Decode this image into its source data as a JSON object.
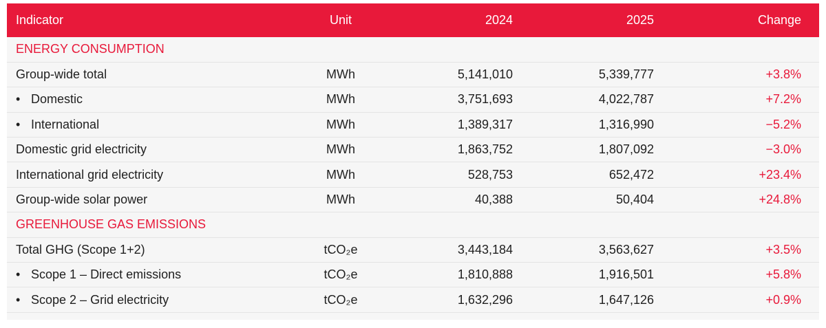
{
  "header": {
    "indicator": "Indicator",
    "unit": "Unit",
    "y2024": "2024",
    "y2025": "2025",
    "change": "Change"
  },
  "sections": [
    {
      "title": "ENERGY CONSUMPTION",
      "rows": [
        {
          "indicator": "Group-wide total",
          "sub": false,
          "unit": "MWh",
          "y2024": "5,141,010",
          "y2025": "5,339,777",
          "change": "+3.8%"
        },
        {
          "indicator": "Domestic",
          "sub": true,
          "unit": "MWh",
          "y2024": "3,751,693",
          "y2025": "4,022,787",
          "change": "+7.2%"
        },
        {
          "indicator": "International",
          "sub": true,
          "unit": "MWh",
          "y2024": "1,389,317",
          "y2025": "1,316,990",
          "change": "−5.2%"
        },
        {
          "indicator": "Domestic grid electricity",
          "sub": false,
          "unit": "MWh",
          "y2024": "1,863,752",
          "y2025": "1,807,092",
          "change": "−3.0%"
        },
        {
          "indicator": "International grid electricity",
          "sub": false,
          "unit": "MWh",
          "y2024": "528,753",
          "y2025": "652,472",
          "change": "+23.4%"
        },
        {
          "indicator": "Group-wide solar power",
          "sub": false,
          "unit": "MWh",
          "y2024": "40,388",
          "y2025": "50,404",
          "change": "+24.8%"
        }
      ]
    },
    {
      "title": "GREENHOUSE GAS EMISSIONS",
      "rows": [
        {
          "indicator": "Total GHG (Scope 1+2)",
          "sub": false,
          "unit": "tCO₂e",
          "y2024": "3,443,184",
          "y2025": "3,563,627",
          "change": "+3.5%"
        },
        {
          "indicator": "Scope 1 – Direct emissions",
          "sub": true,
          "unit": "tCO₂e",
          "y2024": "1,810,888",
          "y2025": "1,916,501",
          "change": "+5.8%"
        },
        {
          "indicator": "Scope 2 – Grid electricity",
          "sub": true,
          "unit": "tCO₂e",
          "y2024": "1,632,296",
          "y2025": "1,647,126",
          "change": "+0.9%"
        }
      ]
    }
  ],
  "bullet": "•",
  "colors": {
    "accent": "#e8193a",
    "band": "#f6f6f6"
  }
}
